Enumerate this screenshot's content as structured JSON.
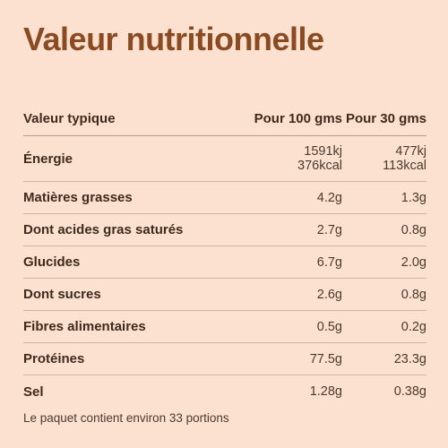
{
  "title": "Valeur nutritionnelle",
  "columns": {
    "label": "Valeur typique",
    "per100": "Pour 100 gms",
    "per30": "Pour 30 gms"
  },
  "rows": [
    {
      "name": "Énergie",
      "per100": [
        "1591kj",
        "376kcal"
      ],
      "per30": [
        "477kj",
        "113kcal"
      ]
    },
    {
      "name": "Matières grasses",
      "per100": "4.2g",
      "per30": "1.3g"
    },
    {
      "name": "Dont acides gras saturés",
      "per100": "2.7g",
      "per30": "0.8g"
    },
    {
      "name": "Glucides",
      "per100": "6.7g",
      "per30": "2.0g"
    },
    {
      "name": "Dont sucres",
      "per100": "2.6g",
      "per30": "0.8g"
    },
    {
      "name": "Fibres alimentaires",
      "per100": "0.5g",
      "per30": "0.2g"
    },
    {
      "name": "Protéines",
      "per100": "77.5g",
      "per30": "23.3g"
    },
    {
      "name": "Sel",
      "per100": "1.28g",
      "per30": "0.38g"
    }
  ],
  "footnote": "Le paquet contient environ 33 portions",
  "colors": {
    "background": "#fde1d0",
    "title": "#8a4a22",
    "text": "#3e2a1d",
    "divider": "#cfb4a4"
  }
}
